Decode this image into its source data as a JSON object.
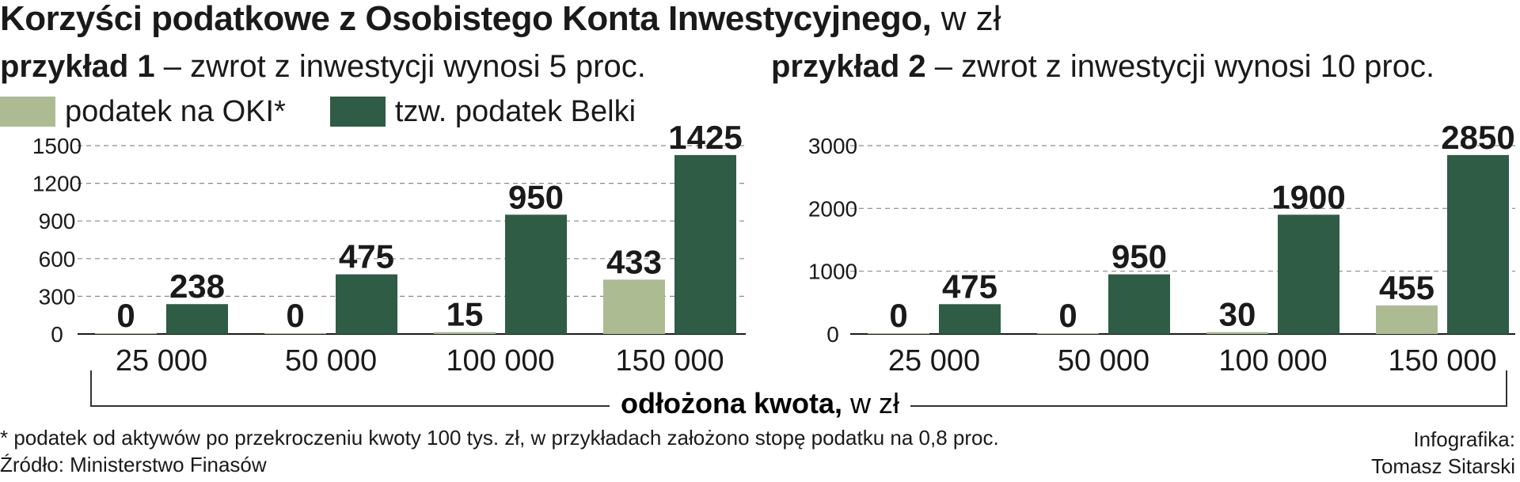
{
  "title": {
    "main": "Korzyści podatkowe z Osobistego Konta Inwestycyjnego,",
    "unit": " w zł"
  },
  "legend": [
    {
      "label": "podatek na OKI*",
      "color": "#adbb93"
    },
    {
      "label": "tzw. podatek Belki",
      "color": "#2e5c45"
    }
  ],
  "x_axis": {
    "label": "odłożona kwota,",
    "unit": " w zł"
  },
  "footnote": "* podatek od aktywów po przekroczeniu kwoty 100 tys. zł, w przykładach założono stopę podatku na 0,8 proc.",
  "source": "Źródło: Ministerstwo Finasów",
  "credit": [
    "Infografika:",
    "Tomasz Sitarski"
  ],
  "chart_data": [
    {
      "type": "bar",
      "example": "przykład 1",
      "subtitle": " – zwrot z inwestycji wynosi 5 proc.",
      "categories": [
        "25 000",
        "50 000",
        "100 000",
        "150 000"
      ],
      "series": [
        {
          "name": "podatek na OKI*",
          "color": "#adbb93",
          "values": [
            0,
            0,
            15,
            433
          ]
        },
        {
          "name": "tzw. podatek Belki",
          "color": "#2e5c45",
          "values": [
            238,
            475,
            950,
            1425
          ]
        }
      ],
      "yticks": [
        "0",
        "300",
        "600",
        "900",
        "1200",
        "1500"
      ],
      "ylim": [
        0,
        1500
      ],
      "grid": true
    },
    {
      "type": "bar",
      "example": "przykład 2",
      "subtitle": " – zwrot z inwestycji wynosi 10 proc.",
      "categories": [
        "25 000",
        "50 000",
        "100 000",
        "150 000"
      ],
      "series": [
        {
          "name": "podatek na OKI*",
          "color": "#adbb93",
          "values": [
            0,
            0,
            30,
            455
          ]
        },
        {
          "name": "tzw. podatek Belki",
          "color": "#2e5c45",
          "values": [
            475,
            950,
            1900,
            2850
          ]
        }
      ],
      "yticks": [
        "0",
        "1000",
        "2000",
        "3000"
      ],
      "ylim": [
        0,
        3000
      ],
      "grid": true
    }
  ]
}
